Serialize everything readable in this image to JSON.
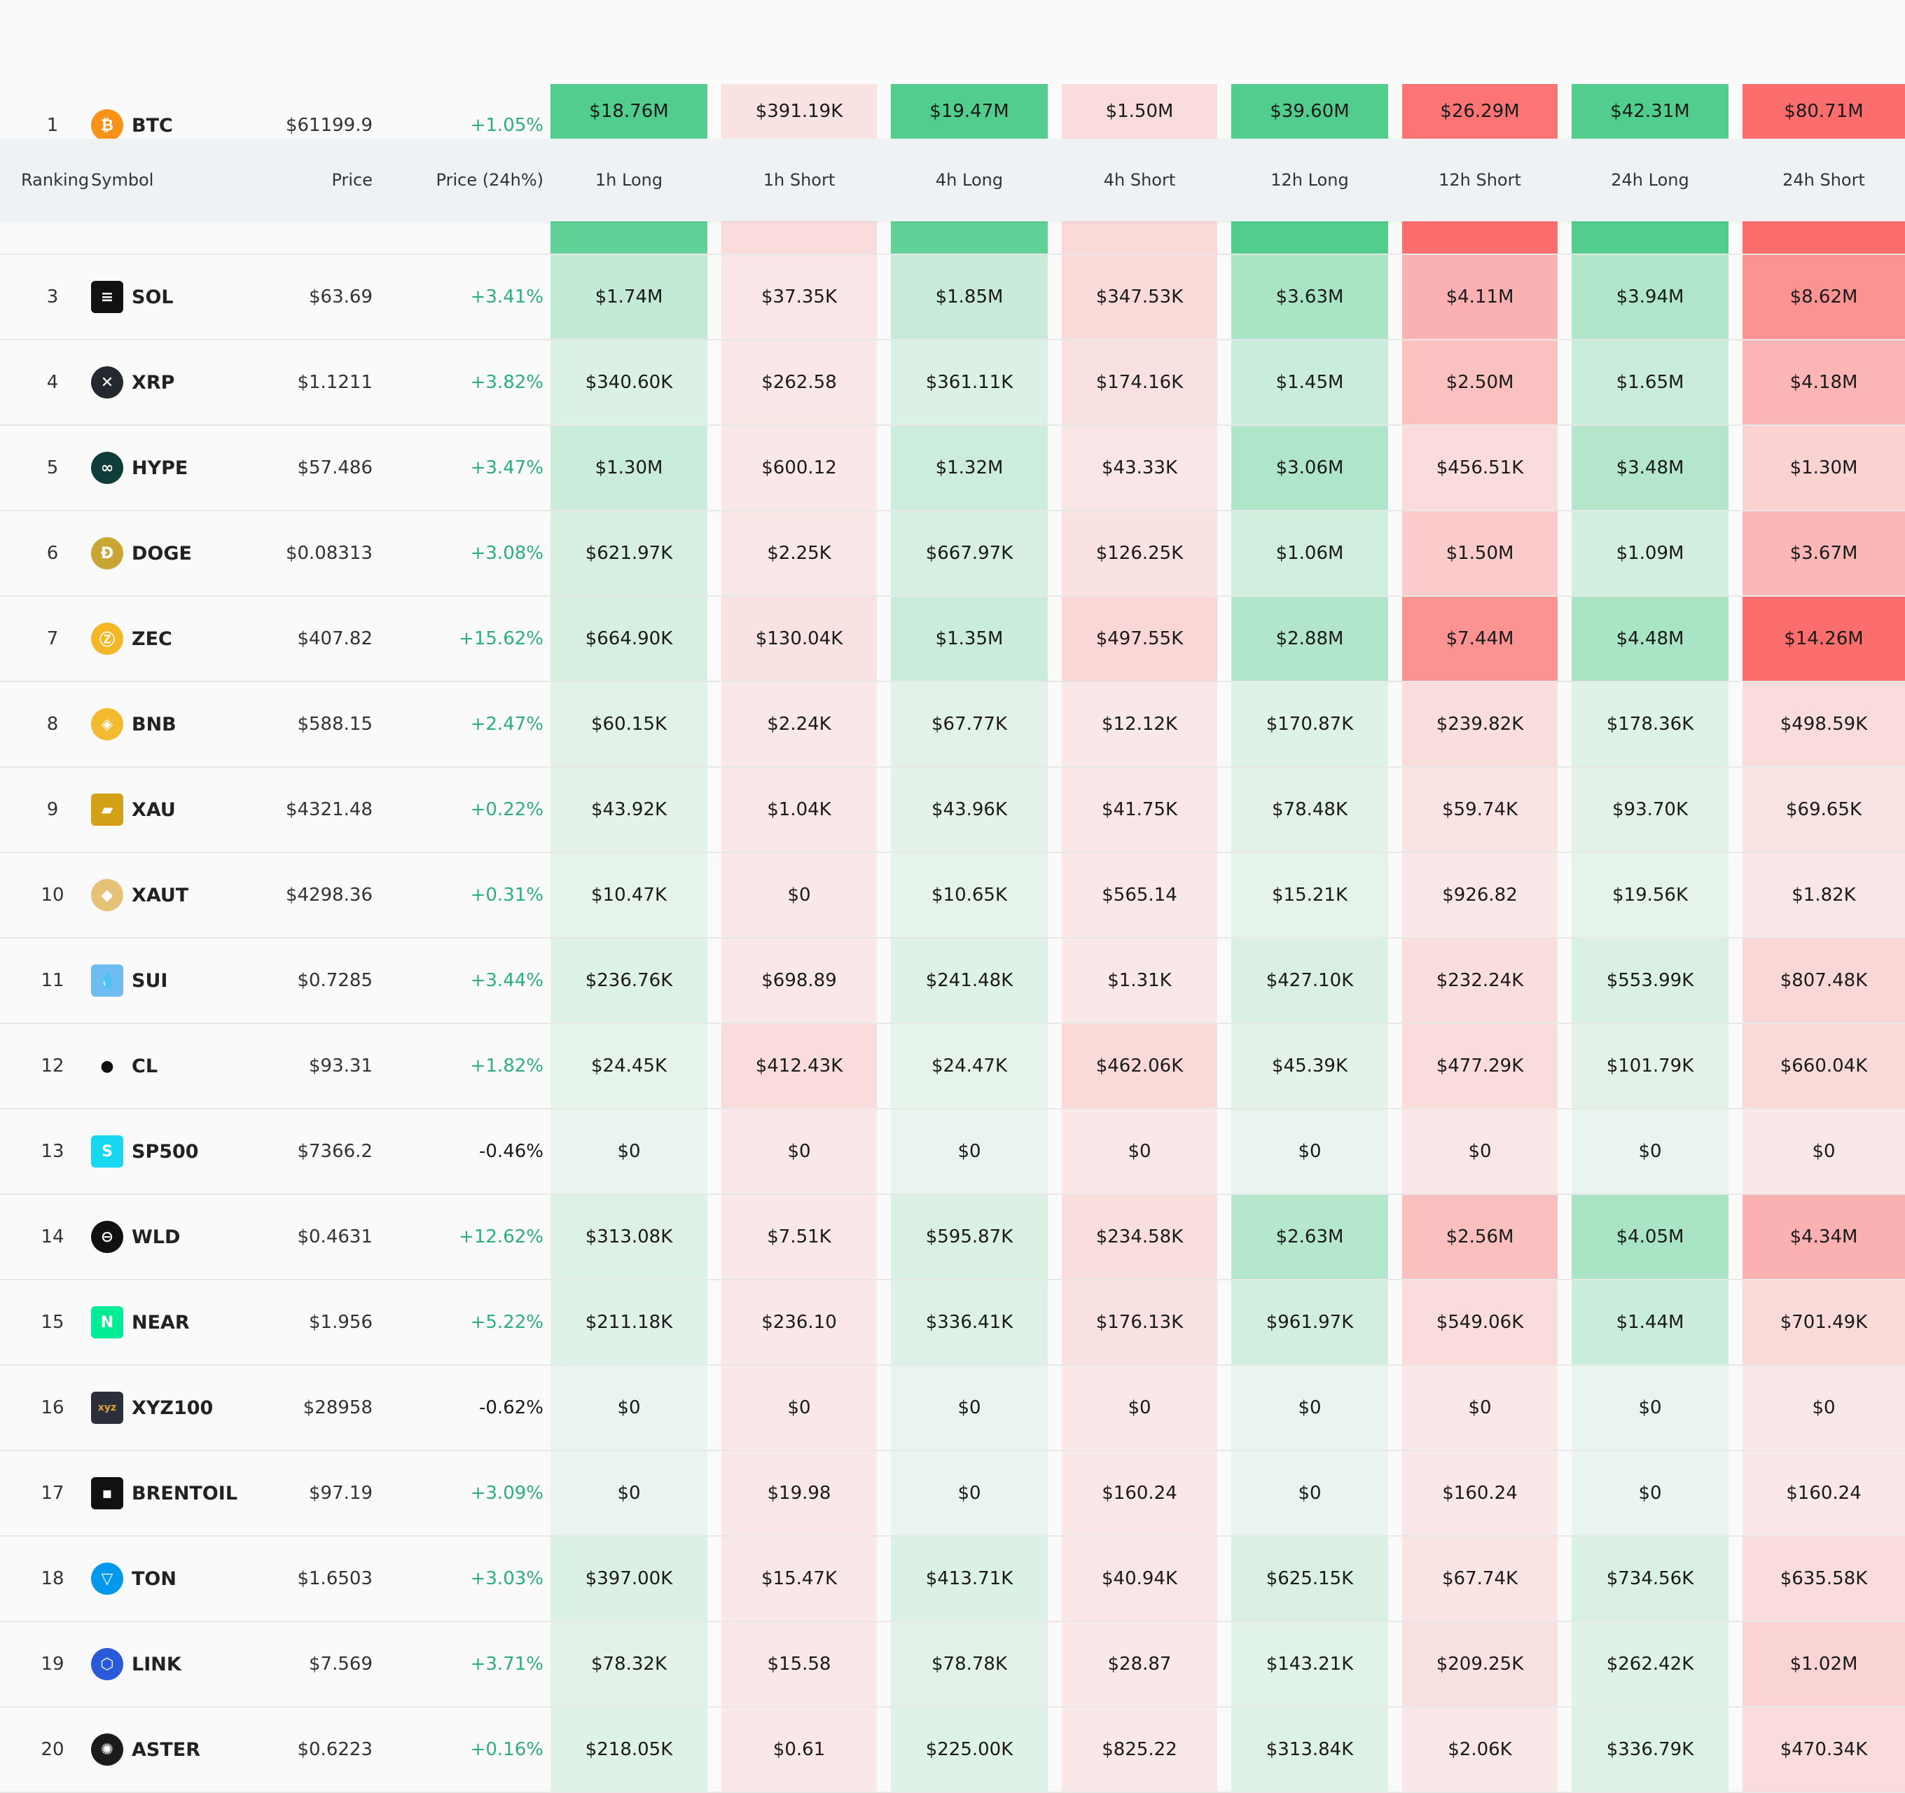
{
  "header": {
    "ranking": "Ranking",
    "symbol": "Symbol",
    "price": "Price",
    "change": "Price (24h%)",
    "h1_long": "1h Long",
    "h1_short": "1h Short",
    "h4_long": "4h Long",
    "h4_short": "4h Short",
    "h12_long": "12h Long",
    "h12_short": "12h Short",
    "h24_long": "24h Long",
    "h24_short": "24h Short"
  },
  "colors": {
    "long_max": "#52cd8d",
    "short_max": "#fc6e6e",
    "up": "#2fae7c",
    "down": "#e03a4b"
  },
  "rows": [
    {
      "rank": "1",
      "symbol": "BTC",
      "icon": "bitcoin-icon",
      "price": "$61199.9",
      "change": "+1.05%",
      "dir": "up",
      "vals": [
        "$18.76M",
        "$391.19K",
        "$19.47M",
        "$1.50M",
        "$39.60M",
        "$26.29M",
        "$42.31M",
        "$80.71M"
      ],
      "levels": [
        1,
        0.05,
        1,
        0.1,
        1,
        0.95,
        1,
        1
      ]
    },
    {
      "rank": "3",
      "symbol": "SOL",
      "icon": "solana-icon",
      "price": "$63.69",
      "change": "+3.41%",
      "dir": "up",
      "vals": [
        "$1.74M",
        "$37.35K",
        "$1.85M",
        "$347.53K",
        "$3.63M",
        "$4.11M",
        "$3.94M",
        "$8.62M"
      ],
      "levels": [
        0.25,
        0.02,
        0.22,
        0.12,
        0.42,
        0.45,
        0.38,
        0.7
      ]
    },
    {
      "rank": "4",
      "symbol": "XRP",
      "icon": "xrp-icon",
      "price": "$1.1211",
      "change": "+3.82%",
      "dir": "up",
      "vals": [
        "$340.60K",
        "$262.58",
        "$361.11K",
        "$174.16K",
        "$1.45M",
        "$2.50M",
        "$1.65M",
        "$4.18M"
      ],
      "levels": [
        0.08,
        0,
        0.08,
        0.06,
        0.2,
        0.32,
        0.2,
        0.42
      ]
    },
    {
      "rank": "5",
      "symbol": "HYPE",
      "icon": "hyperliquid-icon",
      "price": "$57.486",
      "change": "+3.47%",
      "dir": "up",
      "vals": [
        "$1.30M",
        "$600.12",
        "$1.32M",
        "$43.33K",
        "$3.06M",
        "$456.51K",
        "$3.48M",
        "$1.30M"
      ],
      "levels": [
        0.2,
        0,
        0.18,
        0.02,
        0.38,
        0.1,
        0.35,
        0.18
      ]
    },
    {
      "rank": "6",
      "symbol": "DOGE",
      "icon": "dogecoin-icon",
      "price": "$0.08313",
      "change": "+3.08%",
      "dir": "up",
      "vals": [
        "$621.97K",
        "$2.25K",
        "$667.97K",
        "$126.25K",
        "$1.06M",
        "$1.50M",
        "$1.09M",
        "$3.67M"
      ],
      "levels": [
        0.12,
        0,
        0.12,
        0.05,
        0.16,
        0.25,
        0.15,
        0.4
      ]
    },
    {
      "rank": "7",
      "symbol": "ZEC",
      "icon": "zcash-icon",
      "price": "$407.82",
      "change": "+15.62%",
      "dir": "up",
      "vals": [
        "$664.90K",
        "$130.04K",
        "$1.35M",
        "$497.55K",
        "$2.88M",
        "$7.44M",
        "$4.48M",
        "$14.26M"
      ],
      "levels": [
        0.12,
        0.05,
        0.2,
        0.15,
        0.36,
        0.7,
        0.42,
        1
      ]
    },
    {
      "rank": "8",
      "symbol": "BNB",
      "icon": "bnb-icon",
      "price": "$588.15",
      "change": "+2.47%",
      "dir": "up",
      "vals": [
        "$60.15K",
        "$2.24K",
        "$67.77K",
        "$12.12K",
        "$170.87K",
        "$239.82K",
        "$178.36K",
        "$498.59K"
      ],
      "levels": [
        0.04,
        0,
        0.04,
        0,
        0.06,
        0.08,
        0.06,
        0.1
      ]
    },
    {
      "rank": "9",
      "symbol": "XAU",
      "icon": "gold-bars-icon",
      "price": "$4321.48",
      "change": "+0.22%",
      "dir": "up",
      "vals": [
        "$43.92K",
        "$1.04K",
        "$43.96K",
        "$41.75K",
        "$78.48K",
        "$59.74K",
        "$93.70K",
        "$69.65K"
      ],
      "levels": [
        0.03,
        0,
        0.03,
        0.02,
        0.04,
        0.04,
        0.04,
        0.04
      ]
    },
    {
      "rank": "10",
      "symbol": "XAUT",
      "icon": "tether-gold-icon",
      "price": "$4298.36",
      "change": "+0.31%",
      "dir": "up",
      "vals": [
        "$10.47K",
        "$0",
        "$10.65K",
        "$565.14",
        "$15.21K",
        "$926.82",
        "$19.56K",
        "$1.82K"
      ],
      "levels": [
        0.02,
        0,
        0.02,
        0,
        0.02,
        0,
        0.02,
        0
      ]
    },
    {
      "rank": "11",
      "symbol": "SUI",
      "icon": "sui-icon",
      "price": "$0.7285",
      "change": "+3.44%",
      "dir": "up",
      "vals": [
        "$236.76K",
        "$698.89",
        "$241.48K",
        "$1.31K",
        "$427.10K",
        "$232.24K",
        "$553.99K",
        "$807.48K"
      ],
      "levels": [
        0.06,
        0,
        0.06,
        0,
        0.09,
        0.08,
        0.09,
        0.14
      ]
    },
    {
      "rank": "12",
      "symbol": "CL",
      "icon": "oil-drop-icon",
      "price": "$93.31",
      "change": "+1.82%",
      "dir": "up",
      "vals": [
        "$24.45K",
        "$412.43K",
        "$24.47K",
        "$462.06K",
        "$45.39K",
        "$477.29K",
        "$101.79K",
        "$660.04K"
      ],
      "levels": [
        0.02,
        0.1,
        0.02,
        0.12,
        0.03,
        0.1,
        0.04,
        0.12
      ]
    },
    {
      "rank": "13",
      "symbol": "SP500",
      "icon": "sp500-icon",
      "price": "$7366.2",
      "change": "-0.46%",
      "dir": "down",
      "vals": [
        "$0",
        "$0",
        "$0",
        "$0",
        "$0",
        "$0",
        "$0",
        "$0"
      ],
      "levels": [
        0,
        0,
        0,
        0,
        0,
        0,
        0,
        0
      ]
    },
    {
      "rank": "14",
      "symbol": "WLD",
      "icon": "worldcoin-icon",
      "price": "$0.4631",
      "change": "+12.62%",
      "dir": "up",
      "vals": [
        "$313.08K",
        "$7.51K",
        "$595.87K",
        "$234.58K",
        "$2.63M",
        "$2.56M",
        "$4.05M",
        "$4.34M"
      ],
      "levels": [
        0.07,
        0,
        0.1,
        0.08,
        0.34,
        0.34,
        0.42,
        0.45
      ]
    },
    {
      "rank": "15",
      "symbol": "NEAR",
      "icon": "near-icon",
      "price": "$1.956",
      "change": "+5.22%",
      "dir": "up",
      "vals": [
        "$211.18K",
        "$236.10",
        "$336.41K",
        "$176.13K",
        "$961.97K",
        "$549.06K",
        "$1.44M",
        "$701.49K"
      ],
      "levels": [
        0.06,
        0,
        0.07,
        0.06,
        0.15,
        0.1,
        0.2,
        0.12
      ]
    },
    {
      "rank": "16",
      "symbol": "XYZ100",
      "icon": "xyz-icon",
      "price": "$28958",
      "change": "-0.62%",
      "dir": "down",
      "vals": [
        "$0",
        "$0",
        "$0",
        "$0",
        "$0",
        "$0",
        "$0",
        "$0"
      ],
      "levels": [
        0,
        0,
        0,
        0,
        0,
        0,
        0,
        0
      ]
    },
    {
      "rank": "17",
      "symbol": "BRENTOIL",
      "icon": "brent-oil-icon",
      "price": "$97.19",
      "change": "+3.09%",
      "dir": "up",
      "vals": [
        "$0",
        "$19.98",
        "$0",
        "$160.24",
        "$0",
        "$160.24",
        "$0",
        "$160.24"
      ],
      "levels": [
        0,
        0,
        0,
        0,
        0,
        0,
        0,
        0
      ]
    },
    {
      "rank": "18",
      "symbol": "TON",
      "icon": "ton-icon",
      "price": "$1.6503",
      "change": "+3.03%",
      "dir": "up",
      "vals": [
        "$397.00K",
        "$15.47K",
        "$413.71K",
        "$40.94K",
        "$625.15K",
        "$67.74K",
        "$734.56K",
        "$635.58K"
      ],
      "levels": [
        0.08,
        0,
        0.08,
        0.02,
        0.1,
        0.03,
        0.1,
        0.1
      ]
    },
    {
      "rank": "19",
      "symbol": "LINK",
      "icon": "chainlink-icon",
      "price": "$7.569",
      "change": "+3.71%",
      "dir": "up",
      "vals": [
        "$78.32K",
        "$15.58",
        "$78.78K",
        "$28.87",
        "$143.21K",
        "$209.25K",
        "$262.42K",
        "$1.02M"
      ],
      "levels": [
        0.04,
        0,
        0.04,
        0,
        0.05,
        0.06,
        0.06,
        0.16
      ]
    },
    {
      "rank": "20",
      "symbol": "ASTER",
      "icon": "aster-icon",
      "price": "$0.6223",
      "change": "+0.16%",
      "dir": "up",
      "vals": [
        "$218.05K",
        "$0.61",
        "$225.00K",
        "$825.22",
        "$313.84K",
        "$2.06K",
        "$336.79K",
        "$470.34K"
      ],
      "levels": [
        0.06,
        0,
        0.06,
        0,
        0.07,
        0,
        0.07,
        0.1
      ]
    }
  ]
}
